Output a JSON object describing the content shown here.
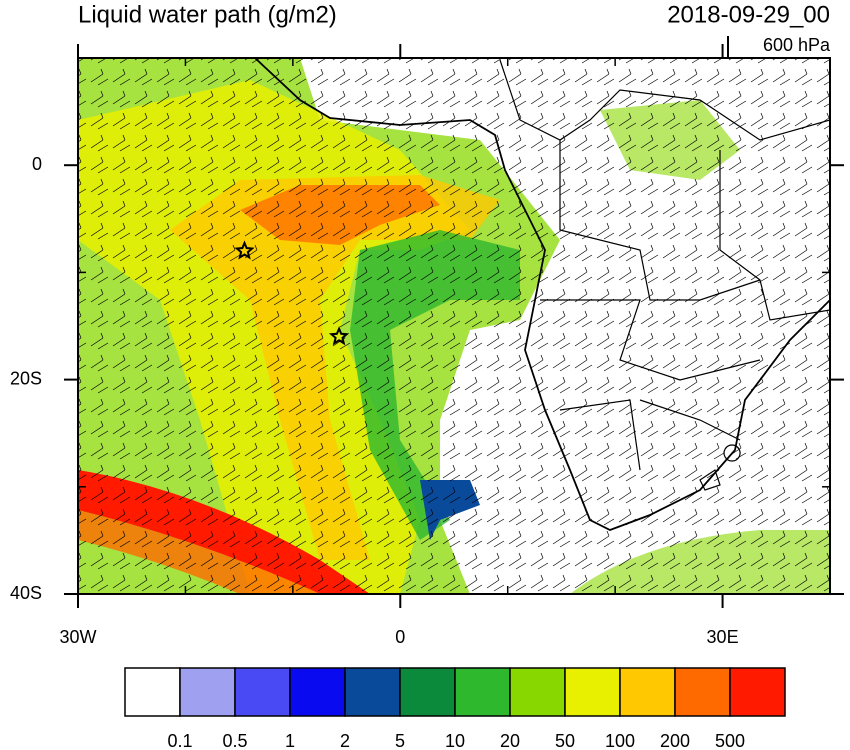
{
  "header": {
    "title": "Liquid water path (g/m2)",
    "date": "2018-09-29_00",
    "level": "600 hPa"
  },
  "map": {
    "xlim": [
      -30,
      40
    ],
    "ylim": [
      -40,
      10
    ],
    "xticks": [
      {
        "value": -30,
        "label": "30W"
      },
      0,
      {
        "value": 30,
        "label": "30E"
      }
    ],
    "yticks": [
      0,
      {
        "value": -20,
        "label": "20S"
      },
      {
        "value": -40,
        "label": "40S"
      }
    ],
    "xminor": [
      -20,
      -10,
      10,
      20,
      40
    ],
    "yminor": [
      10,
      -10,
      -30
    ],
    "markers": [
      {
        "lon": -14.5,
        "lat": -8
      },
      {
        "lon": -5.7,
        "lat": -16
      }
    ]
  },
  "colorbar": {
    "colors": [
      "#ffffff",
      "#a0a0f0",
      "#4a4af5",
      "#0a0af0",
      "#0a4a9a",
      "#0a8a3a",
      "#2eb82e",
      "#88d800",
      "#e8f000",
      "#ffc800",
      "#ff6a00",
      "#ff1a00"
    ],
    "ticks": [
      0.1,
      0.5,
      1,
      2,
      5,
      10,
      20,
      50,
      100,
      200,
      500
    ]
  }
}
